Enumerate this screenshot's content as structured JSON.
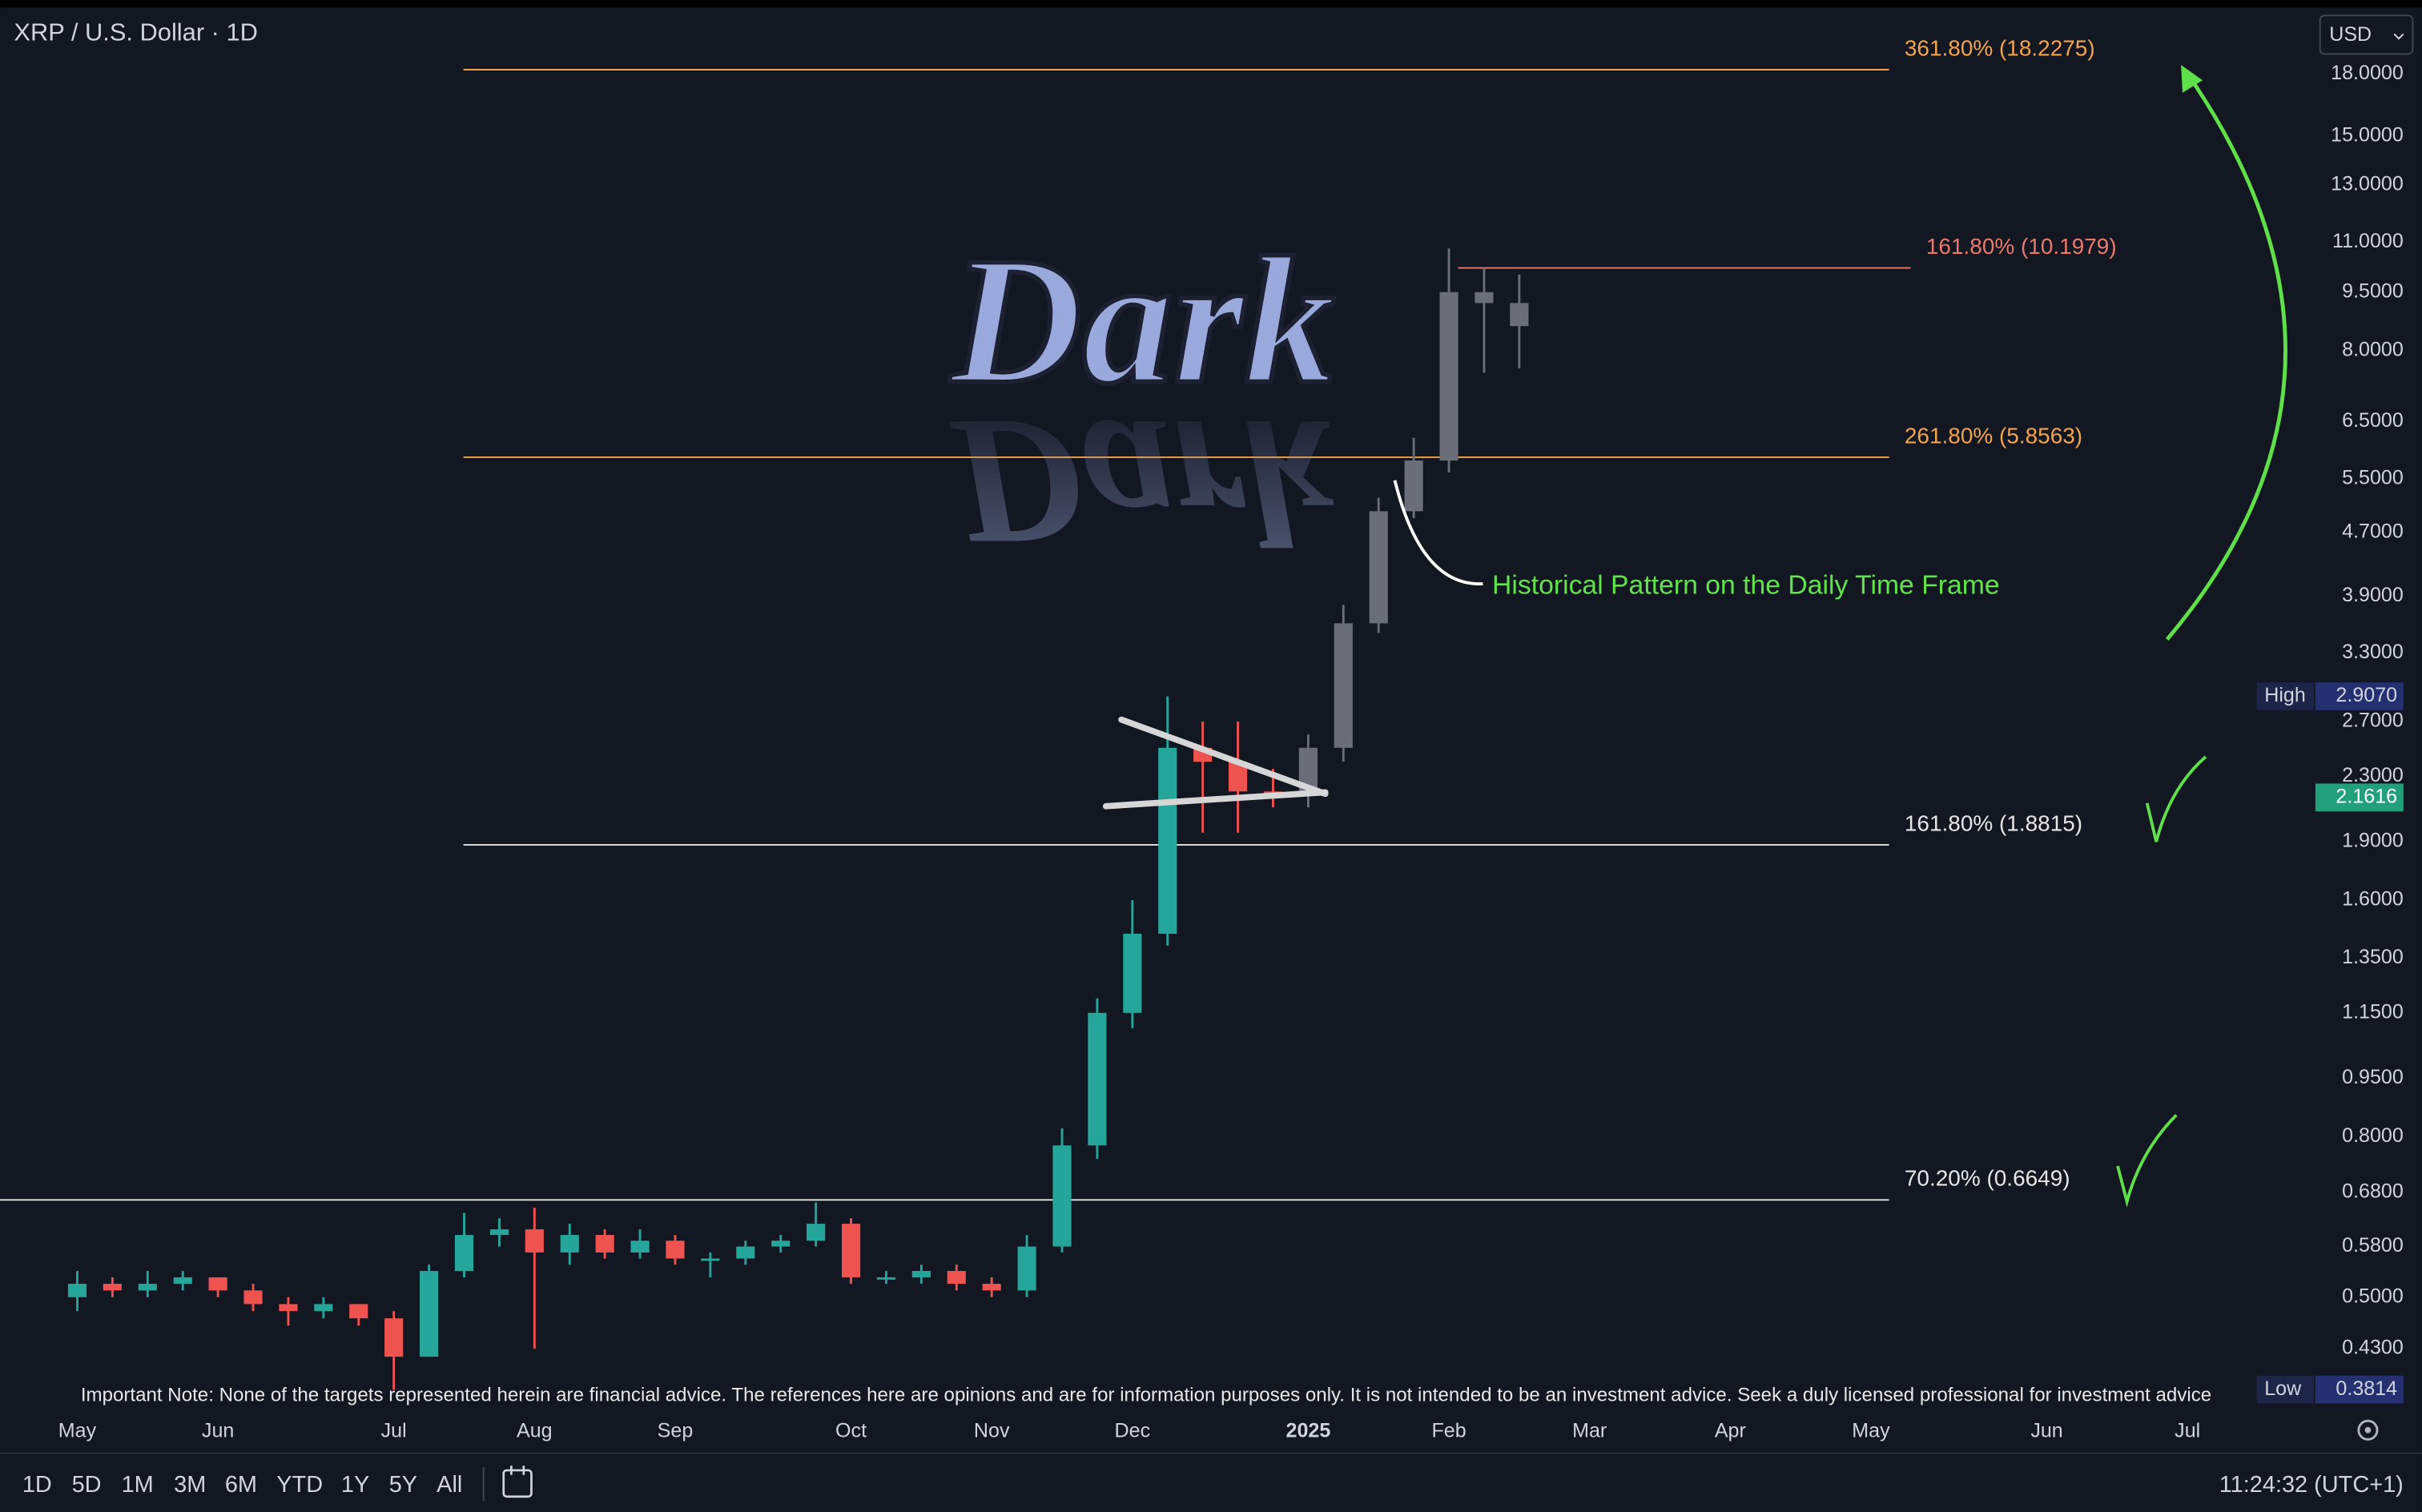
{
  "header": {
    "symbol": "XRP / U.S. Dollar · 1D",
    "currency": "USD"
  },
  "chart_data": {
    "type": "candlestick",
    "log_scale": true,
    "ylim": [
      0.356,
      21.56
    ],
    "yticks": [
      {
        "value": 18,
        "label": "18.0000"
      },
      {
        "value": 15,
        "label": "15.0000"
      },
      {
        "value": 13,
        "label": "13.0000"
      },
      {
        "value": 11,
        "label": "11.0000"
      },
      {
        "value": 9.5,
        "label": "9.5000"
      },
      {
        "value": 8,
        "label": "8.0000"
      },
      {
        "value": 6.5,
        "label": "6.5000"
      },
      {
        "value": 5.5,
        "label": "5.5000"
      },
      {
        "value": 4.7,
        "label": "4.7000"
      },
      {
        "value": 3.9,
        "label": "3.9000"
      },
      {
        "value": 3.3,
        "label": "3.3000"
      },
      {
        "value": 2.7,
        "label": "2.7000"
      },
      {
        "value": 2.3,
        "label": "2.3000"
      },
      {
        "value": 1.9,
        "label": "1.9000"
      },
      {
        "value": 1.6,
        "label": "1.6000"
      },
      {
        "value": 1.35,
        "label": "1.3500"
      },
      {
        "value": 1.15,
        "label": "1.1500"
      },
      {
        "value": 0.95,
        "label": "0.9500"
      },
      {
        "value": 0.8,
        "label": "0.8000"
      },
      {
        "value": 0.68,
        "label": "0.6800"
      },
      {
        "value": 0.58,
        "label": "0.5800"
      },
      {
        "value": 0.5,
        "label": "0.5000"
      },
      {
        "value": 0.43,
        "label": "0.4300"
      }
    ],
    "categories": [
      "May",
      null,
      null,
      null,
      "Jun",
      null,
      null,
      null,
      null,
      "Jul",
      null,
      null,
      null,
      "Aug",
      null,
      null,
      null,
      "Sep",
      null,
      null,
      null,
      null,
      "Oct",
      null,
      null,
      null,
      "Nov",
      null,
      null,
      null,
      "Dec",
      null,
      null,
      null,
      null,
      "2025",
      null,
      null,
      null,
      "Feb",
      null,
      null,
      null,
      "Mar",
      null,
      null,
      null,
      "Apr",
      null,
      null,
      null,
      "May",
      null,
      null,
      null,
      null,
      "Jun",
      null,
      null,
      null,
      "Jul"
    ],
    "series": [
      {
        "color_up": "#26a69a",
        "color_down": "#ef5350",
        "open": [
          0.5,
          0.52,
          0.51,
          0.52,
          0.53,
          0.51,
          0.49,
          0.48,
          0.49,
          0.47,
          0.42,
          0.54,
          0.6,
          0.61,
          0.57,
          0.6,
          0.57,
          0.59,
          0.56,
          0.56,
          0.58,
          0.59,
          0.62,
          0.53,
          0.53,
          0.54,
          0.52,
          0.51,
          0.58,
          0.78,
          1.15,
          1.45,
          2.5,
          2.4,
          2.2,
          null,
          null,
          null,
          null,
          null,
          null,
          null,
          null,
          null,
          null,
          null,
          null,
          null,
          null,
          null,
          null,
          null,
          null,
          null,
          null,
          null,
          null,
          null,
          null,
          null,
          null
        ],
        "high": [
          0.54,
          0.53,
          0.54,
          0.54,
          0.53,
          0.52,
          0.5,
          0.5,
          0.49,
          0.48,
          0.55,
          0.64,
          0.63,
          0.65,
          0.62,
          0.61,
          0.61,
          0.6,
          0.57,
          0.59,
          0.6,
          0.66,
          0.63,
          0.54,
          0.55,
          0.55,
          0.53,
          0.6,
          0.82,
          1.2,
          1.6,
          2.907,
          2.7,
          2.7,
          2.35,
          null,
          null,
          null,
          null,
          null,
          null,
          null,
          null,
          null,
          null,
          null,
          null,
          null,
          null,
          null,
          null,
          null,
          null,
          null,
          null,
          null,
          null,
          null,
          null,
          null,
          null
        ],
        "low": [
          0.48,
          0.5,
          0.5,
          0.51,
          0.5,
          0.48,
          0.46,
          0.47,
          0.46,
          0.3814,
          0.42,
          0.53,
          0.58,
          0.43,
          0.55,
          0.56,
          0.56,
          0.55,
          0.53,
          0.55,
          0.57,
          0.58,
          0.52,
          0.52,
          0.52,
          0.51,
          0.5,
          0.5,
          0.57,
          0.75,
          1.1,
          1.4,
          1.95,
          1.95,
          2.1,
          null,
          null,
          null,
          null,
          null,
          null,
          null,
          null,
          null,
          null,
          null,
          null,
          null,
          null,
          null,
          null,
          null,
          null,
          null,
          null,
          null,
          null,
          null,
          null,
          null,
          null
        ],
        "close": [
          0.52,
          0.51,
          0.52,
          0.53,
          0.51,
          0.49,
          0.48,
          0.49,
          0.47,
          0.42,
          0.54,
          0.6,
          0.61,
          0.57,
          0.6,
          0.57,
          0.59,
          0.56,
          0.56,
          0.58,
          0.59,
          0.62,
          0.53,
          0.53,
          0.54,
          0.52,
          0.51,
          0.58,
          0.78,
          1.15,
          1.45,
          2.5,
          2.4,
          2.2,
          2.1616,
          null,
          null,
          null,
          null,
          null,
          null,
          null,
          null,
          null,
          null,
          null,
          null,
          null,
          null,
          null,
          null,
          null,
          null,
          null,
          null,
          null,
          null,
          null,
          null,
          null,
          null
        ]
      },
      {
        "color": "#6b6e78",
        "open": [
          null,
          null,
          null,
          null,
          null,
          null,
          null,
          null,
          null,
          null,
          null,
          null,
          null,
          null,
          null,
          null,
          null,
          null,
          null,
          null,
          null,
          null,
          null,
          null,
          null,
          null,
          null,
          null,
          null,
          null,
          null,
          null,
          null,
          null,
          null,
          2.2,
          2.5,
          3.6,
          5.0,
          5.8,
          9.5,
          9.2,
          null,
          null,
          null,
          null,
          null,
          null,
          null,
          null,
          null,
          null,
          null,
          null,
          null,
          null,
          null,
          null,
          null,
          null,
          null
        ],
        "high": [
          null,
          null,
          null,
          null,
          null,
          null,
          null,
          null,
          null,
          null,
          null,
          null,
          null,
          null,
          null,
          null,
          null,
          null,
          null,
          null,
          null,
          null,
          null,
          null,
          null,
          null,
          null,
          null,
          null,
          null,
          null,
          null,
          null,
          null,
          null,
          2.6,
          3.8,
          5.2,
          6.2,
          10.8,
          10.2,
          10.0,
          null,
          null,
          null,
          null,
          null,
          null,
          null,
          null,
          null,
          null,
          null,
          null,
          null,
          null,
          null,
          null,
          null,
          null,
          null
        ],
        "low": [
          null,
          null,
          null,
          null,
          null,
          null,
          null,
          null,
          null,
          null,
          null,
          null,
          null,
          null,
          null,
          null,
          null,
          null,
          null,
          null,
          null,
          null,
          null,
          null,
          null,
          null,
          null,
          null,
          null,
          null,
          null,
          null,
          null,
          null,
          null,
          2.1,
          2.4,
          3.5,
          4.9,
          5.6,
          7.5,
          7.6,
          null,
          null,
          null,
          null,
          null,
          null,
          null,
          null,
          null,
          null,
          null,
          null,
          null,
          null,
          null,
          null,
          null,
          null,
          null
        ],
        "close": [
          null,
          null,
          null,
          null,
          null,
          null,
          null,
          null,
          null,
          null,
          null,
          null,
          null,
          null,
          null,
          null,
          null,
          null,
          null,
          null,
          null,
          null,
          null,
          null,
          null,
          null,
          null,
          null,
          null,
          null,
          null,
          null,
          null,
          null,
          null,
          2.5,
          3.6,
          5.0,
          5.8,
          9.5,
          9.2,
          8.6,
          null,
          null,
          null,
          null,
          null,
          null,
          null,
          null,
          null,
          null,
          null,
          null,
          null,
          null,
          null,
          null,
          null,
          null,
          null
        ]
      }
    ],
    "fib_levels": [
      {
        "label": "361.80% (18.2275)",
        "value": 18.2275,
        "color": "#f2a34e"
      },
      {
        "label": "161.80% (10.1979)",
        "value": 10.1979,
        "color": "#e8796c"
      },
      {
        "label": "261.80% (5.8563)",
        "value": 5.8563,
        "color": "#f2a34e"
      },
      {
        "label": "161.80% (1.8815)",
        "value": 1.8815,
        "color": "#e6e6e6"
      },
      {
        "label": "70.20% (0.6649)",
        "value": 0.6649,
        "color": "#e6e6e6"
      }
    ],
    "price_tags": {
      "high": {
        "label": "High",
        "value": 2.907,
        "value_label": "2.9070"
      },
      "low": {
        "label": "Low",
        "value": 0.3814,
        "value_label": "0.3814"
      },
      "last": {
        "value": 2.1616,
        "value_label": "2.1616"
      }
    },
    "annotation": "Historical Pattern on the Daily Time Frame",
    "watermark": "Dark",
    "note": "Important Note: None of the targets represented herein are financial advice. The references here are opinions and are for information purposes only. It is not intended to be an investment advice. Seek a duly licensed professional for investment advice"
  },
  "toolbar": {
    "ranges": [
      "1D",
      "5D",
      "1M",
      "3M",
      "6M",
      "YTD",
      "1Y",
      "5Y",
      "All"
    ],
    "time": "11:24:32 (UTC+1)"
  }
}
